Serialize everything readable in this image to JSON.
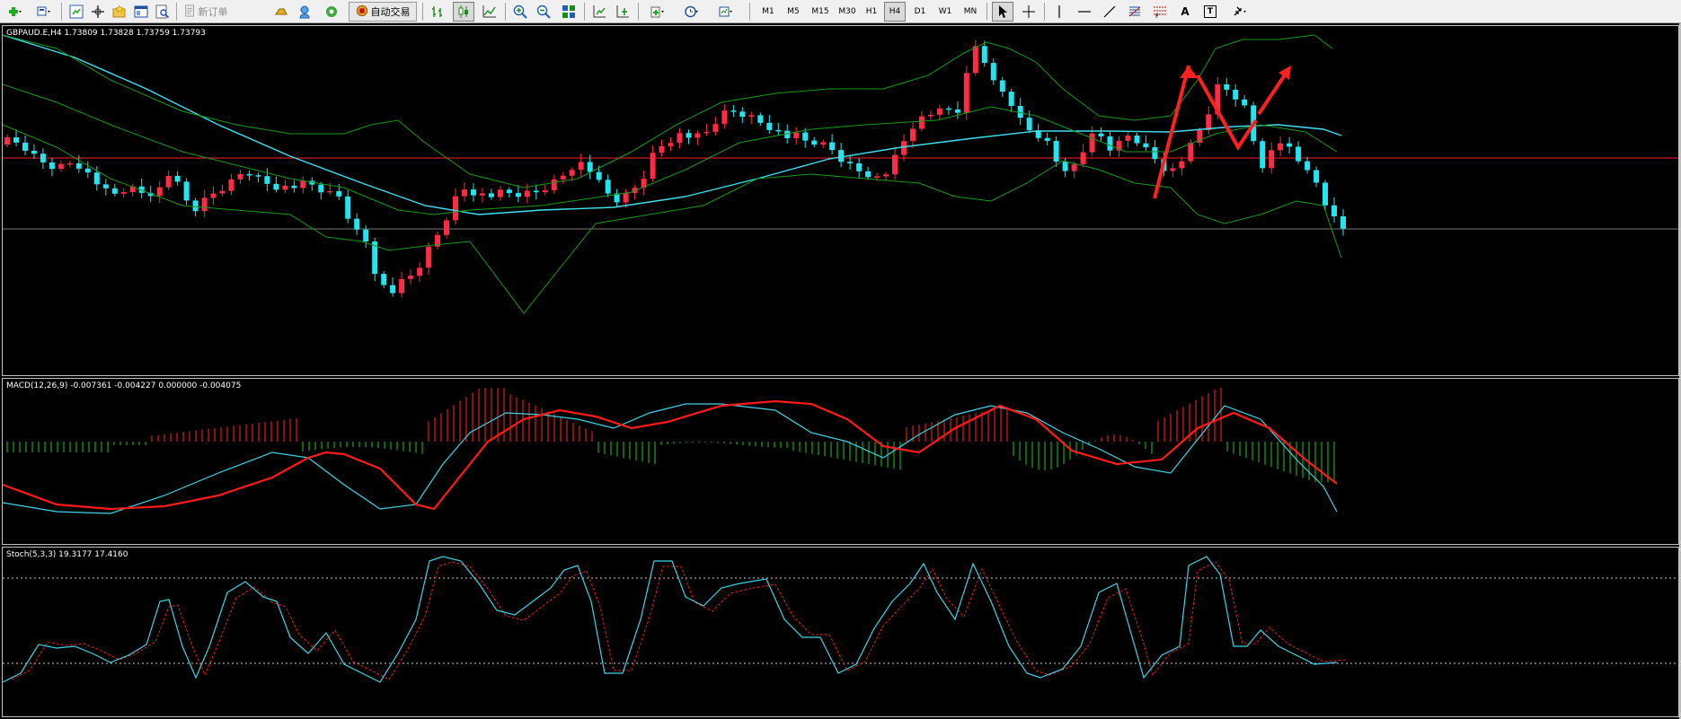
{
  "toolbar": {
    "new_order_label": "新订单",
    "auto_trading_label": "自动交易",
    "timeframes": [
      "M1",
      "M5",
      "M15",
      "M30",
      "H1",
      "H4",
      "D1",
      "W1",
      "MN"
    ],
    "active_timeframe": "H4",
    "text_tool_label": "A",
    "text_label_tool_label": "T"
  },
  "chart": {
    "price_label": "GBPAUD.E,H4  1.73809 1.73828 1.73759 1.73793",
    "macd_label": "MACD(12,26,9) -0.007361 -0.004227 0.000000 -0.004075",
    "stoch_label": "Stoch(5,3,3) 19.3177 17.4160"
  },
  "colors": {
    "bull": "#ff2a45",
    "bear": "#21e6f2",
    "ma": "#3ee0f0",
    "band": "#1a9a1a",
    "hline": "#ff2020",
    "macd_pos": "#d01818",
    "macd_neg": "#1a9a1a",
    "signal": "#ff1a1a",
    "stoch_main": "#3fd5e6",
    "stoch_signal": "#e22020",
    "annot": "#ff2020"
  }
}
